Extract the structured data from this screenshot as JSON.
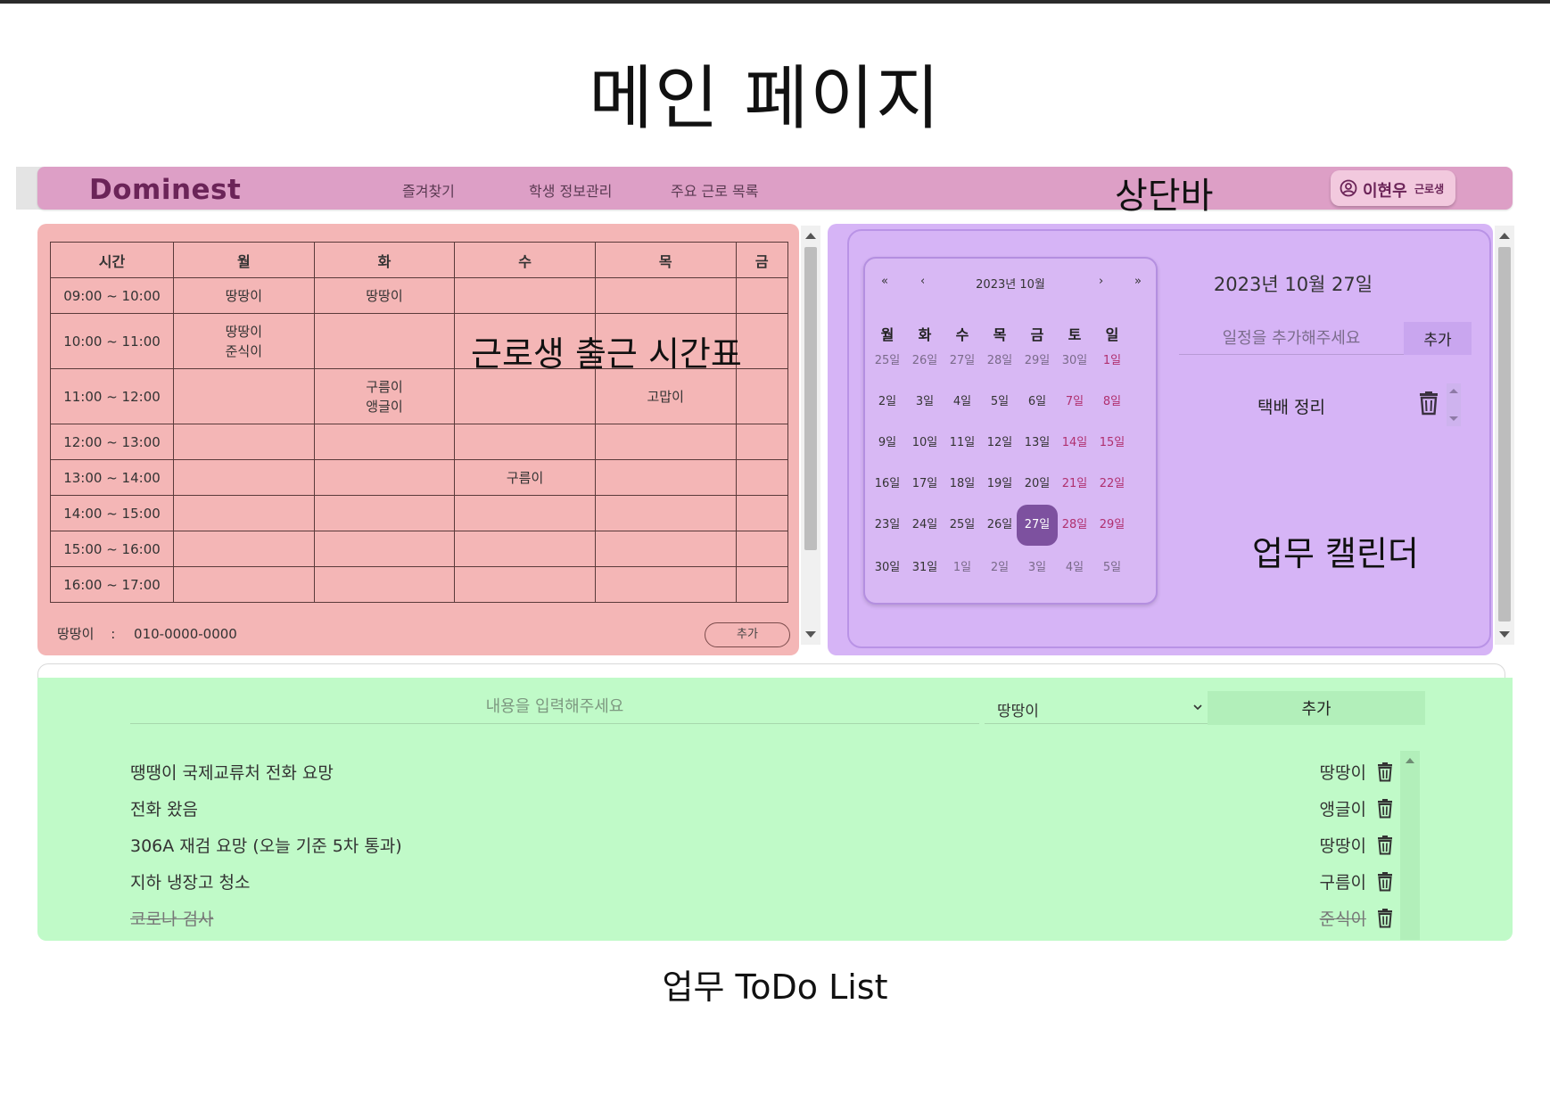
{
  "page": {
    "title": "메인 페이지",
    "footer_label": "업무 ToDo List"
  },
  "navbar": {
    "brand": "Dominest",
    "links": [
      "즐겨찾기",
      "학생 정보관리",
      "주요 근로 목록"
    ],
    "section_label": "상단바",
    "user": {
      "name": "이현우",
      "role": "근로생",
      "icon": "user-circle-icon"
    },
    "color": "#dd9fc6"
  },
  "timetable": {
    "section_label": "근로생 출근 시간표",
    "headers": [
      "시간",
      "월",
      "화",
      "수",
      "목",
      "금"
    ],
    "rows": [
      [
        "09:00 ~ 10:00",
        "땅땅이",
        "땅땅이",
        "",
        "",
        ""
      ],
      [
        "10:00 ~ 11:00",
        "땅땅이\n준식이",
        "",
        "",
        "",
        ""
      ],
      [
        "11:00 ~ 12:00",
        "",
        "구름이\n앵글이",
        "",
        "고맙이",
        ""
      ],
      [
        "12:00 ~ 13:00",
        "",
        "",
        "",
        "",
        ""
      ],
      [
        "13:00 ~ 14:00",
        "",
        "",
        "구름이",
        "",
        ""
      ],
      [
        "14:00 ~ 15:00",
        "",
        "",
        "",
        "",
        ""
      ],
      [
        "15:00 ~ 16:00",
        "",
        "",
        "",
        "",
        ""
      ],
      [
        "16:00 ~ 17:00",
        "",
        "",
        "",
        "",
        ""
      ]
    ],
    "contact": {
      "name": "땅땅이",
      "separator": ":",
      "phone": "010-0000-0000"
    },
    "add_label": "추가",
    "color": "#f4b6b6"
  },
  "calendar": {
    "section_label": "업무 캘린더",
    "nav": {
      "first": "«",
      "prev": "‹",
      "next": "›",
      "last": "»"
    },
    "month_label": "2023년 10월",
    "weekdays": [
      "월",
      "화",
      "수",
      "목",
      "금",
      "토",
      "일"
    ],
    "weeks": [
      [
        "25일",
        "26일",
        "27일",
        "28일",
        "29일",
        "30일",
        "1일"
      ],
      [
        "2일",
        "3일",
        "4일",
        "5일",
        "6일",
        "7일",
        "8일"
      ],
      [
        "9일",
        "10일",
        "11일",
        "12일",
        "13일",
        "14일",
        "15일"
      ],
      [
        "16일",
        "17일",
        "18일",
        "19일",
        "20일",
        "21일",
        "22일"
      ],
      [
        "23일",
        "24일",
        "25일",
        "26일",
        "27일",
        "28일",
        "29일"
      ],
      [
        "30일",
        "31일",
        "1일",
        "2일",
        "3일",
        "4일",
        "5일"
      ]
    ],
    "selected_day": "27일",
    "selected_date_title": "2023년 10월 27일",
    "schedule_placeholder": "일정을 추가해주세요",
    "schedule_add_label": "추가",
    "schedule_items": [
      "택배 정리"
    ],
    "color": "#d6b4f6",
    "selected_color": "#7d519f",
    "weekend_color": "#b0306f"
  },
  "todo": {
    "input_placeholder": "내용을 입력해주세요",
    "selected_assignee": "땅땅이",
    "add_label": "추가",
    "items": [
      {
        "text": "땡땡이 국제교류처 전화 요망",
        "owner": "땅땅이",
        "done": false
      },
      {
        "text": "전화 왔음",
        "owner": "앵글이",
        "done": false
      },
      {
        "text": "306A 재검 요망 (오늘 기준 5차 통과)",
        "owner": "땅땅이",
        "done": false
      },
      {
        "text": "지하 냉장고 청소",
        "owner": "구름이",
        "done": false
      },
      {
        "text": "코로나 검사",
        "owner": "준식이",
        "done": true
      }
    ],
    "color": "#c0fac8"
  }
}
